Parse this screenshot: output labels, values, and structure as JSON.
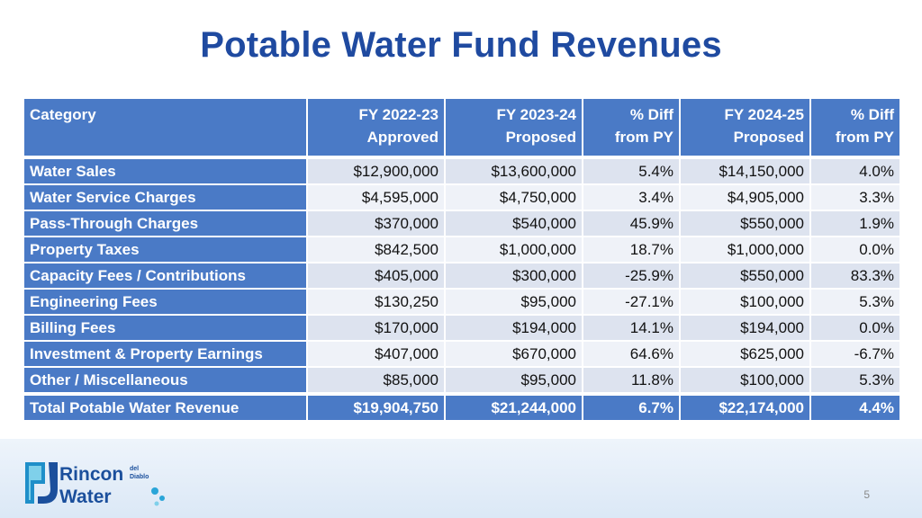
{
  "title": "Potable Water Fund Revenues",
  "table": {
    "headers": [
      {
        "line1": "Category",
        "line2": ""
      },
      {
        "line1": "FY 2022-23",
        "line2": "Approved"
      },
      {
        "line1": "FY 2023-24",
        "line2": "Proposed"
      },
      {
        "line1": "% Diff",
        "line2": "from PY"
      },
      {
        "line1": "FY 2024-25",
        "line2": "Proposed"
      },
      {
        "line1": "% Diff",
        "line2": "from PY"
      }
    ],
    "rows": [
      {
        "category": "Water Sales",
        "fy2223": "$12,900,000",
        "fy2324": "$13,600,000",
        "diff1": "5.4%",
        "fy2425": "$14,150,000",
        "diff2": "4.0%"
      },
      {
        "category": "Water Service Charges",
        "fy2223": "$4,595,000",
        "fy2324": "$4,750,000",
        "diff1": "3.4%",
        "fy2425": "$4,905,000",
        "diff2": "3.3%"
      },
      {
        "category": "Pass-Through Charges",
        "fy2223": "$370,000",
        "fy2324": "$540,000",
        "diff1": "45.9%",
        "fy2425": "$550,000",
        "diff2": "1.9%"
      },
      {
        "category": "Property Taxes",
        "fy2223": "$842,500",
        "fy2324": "$1,000,000",
        "diff1": "18.7%",
        "fy2425": "$1,000,000",
        "diff2": "0.0%"
      },
      {
        "category": "Capacity Fees / Contributions",
        "fy2223": "$405,000",
        "fy2324": "$300,000",
        "diff1": "-25.9%",
        "fy2425": "$550,000",
        "diff2": "83.3%"
      },
      {
        "category": "Engineering Fees",
        "fy2223": "$130,250",
        "fy2324": "$95,000",
        "diff1": "-27.1%",
        "fy2425": "$100,000",
        "diff2": "5.3%"
      },
      {
        "category": "Billing Fees",
        "fy2223": "$170,000",
        "fy2324": "$194,000",
        "diff1": "14.1%",
        "fy2425": "$194,000",
        "diff2": "0.0%"
      },
      {
        "category": "Investment & Property Earnings",
        "fy2223": "$407,000",
        "fy2324": "$670,000",
        "diff1": "64.6%",
        "fy2425": "$625,000",
        "diff2": "-6.7%"
      },
      {
        "category": "Other / Miscellaneous",
        "fy2223": "$85,000",
        "fy2324": "$95,000",
        "diff1": "11.8%",
        "fy2425": "$100,000",
        "diff2": "5.3%"
      }
    ],
    "total": {
      "category": "Total Potable Water Revenue",
      "fy2223": "$19,904,750",
      "fy2324": "$21,244,000",
      "diff1": "6.7%",
      "fy2425": "$22,174,000",
      "diff2": "4.4%"
    }
  },
  "logo": {
    "word1": "Rincon",
    "small1": "del",
    "small2": "Diablo",
    "word2": "Water"
  },
  "page_number": "5",
  "colors": {
    "title": "#1f4aa0",
    "header_bg": "#4a7ac6",
    "row_odd": "#dde3ef",
    "row_even": "#eff2f8"
  }
}
